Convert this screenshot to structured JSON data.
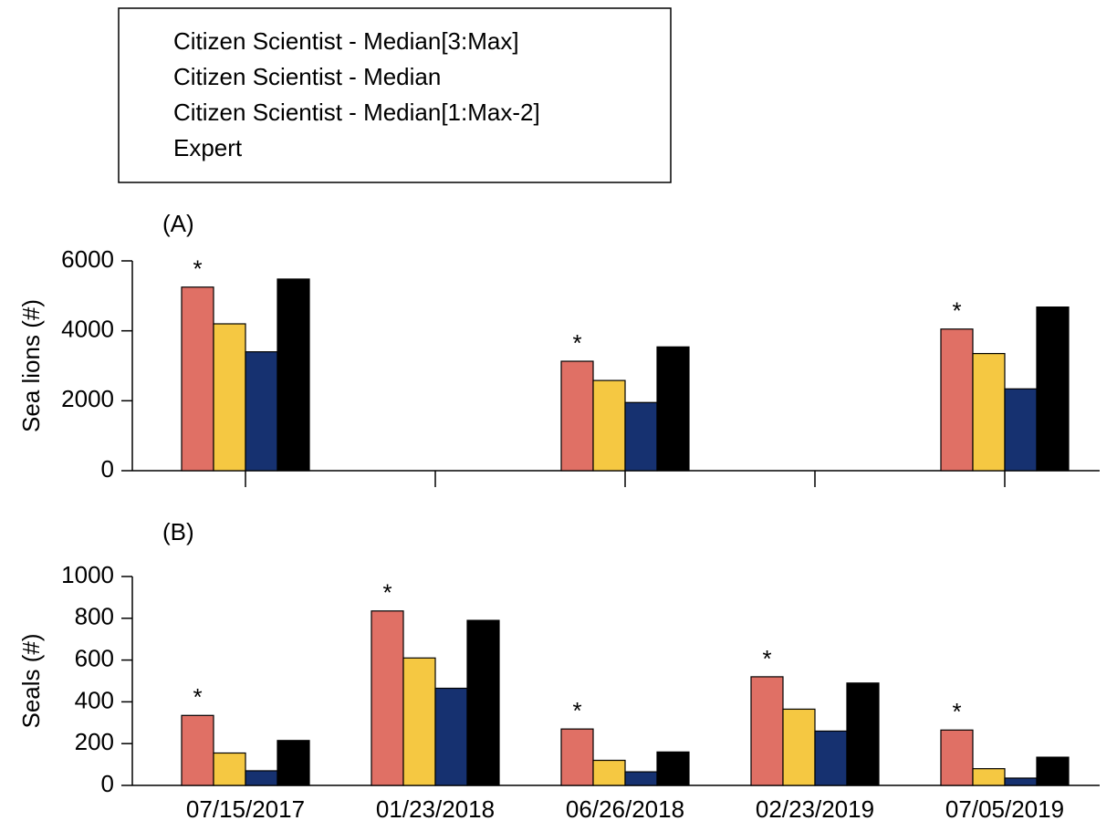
{
  "chart_data": [
    {
      "type": "bar",
      "title": "(A)",
      "y_label": "Sea lions (#)",
      "categories": [
        null,
        null,
        null,
        null,
        null
      ],
      "series": [
        {
          "name": "Citizen Scientist - Median[3:Max]",
          "color": "#e07065",
          "values": [
            5250,
            null,
            3130,
            null,
            4050
          ]
        },
        {
          "name": "Citizen Scientist - Median",
          "color": "#f5c842",
          "values": [
            4200,
            null,
            2580,
            null,
            3350
          ]
        },
        {
          "name": "Citizen Scientist - Median[1:Max-2]",
          "color": "#163170",
          "values": [
            3400,
            null,
            1950,
            null,
            2340
          ]
        },
        {
          "name": "Expert",
          "color": "#000000",
          "values": [
            5480,
            null,
            3540,
            null,
            4680
          ]
        }
      ],
      "annotations": [
        {
          "text": "*",
          "index": 0
        },
        {
          "text": "*",
          "index": 2
        },
        {
          "text": "*",
          "index": 4
        }
      ],
      "ylim": [
        0,
        6000
      ],
      "yticks": [
        0,
        2000,
        4000,
        6000
      ]
    },
    {
      "type": "bar",
      "title": "(B)",
      "y_label": "Seals (#)",
      "categories": [
        "07/15/2017",
        "01/23/2018",
        "06/26/2018",
        "02/23/2019",
        "07/05/2019"
      ],
      "series": [
        {
          "color": "#e07065",
          "values": [
            335,
            835,
            270,
            520,
            265
          ]
        },
        {
          "color": "#f5c842",
          "values": [
            155,
            610,
            120,
            365,
            80
          ]
        },
        {
          "color": "#163170",
          "values": [
            70,
            465,
            65,
            260,
            35
          ]
        },
        {
          "color": "#000000",
          "values": [
            215,
            790,
            160,
            490,
            135
          ]
        }
      ],
      "annotations": [
        {
          "text": "*",
          "index": 0
        },
        {
          "text": "*",
          "index": 1
        },
        {
          "text": "*",
          "index": 2
        },
        {
          "text": "*",
          "index": 3
        },
        {
          "text": "*",
          "index": 4
        }
      ],
      "ylim": [
        0,
        1000
      ],
      "yticks": [
        0,
        200,
        400,
        600,
        800,
        1000
      ]
    }
  ]
}
